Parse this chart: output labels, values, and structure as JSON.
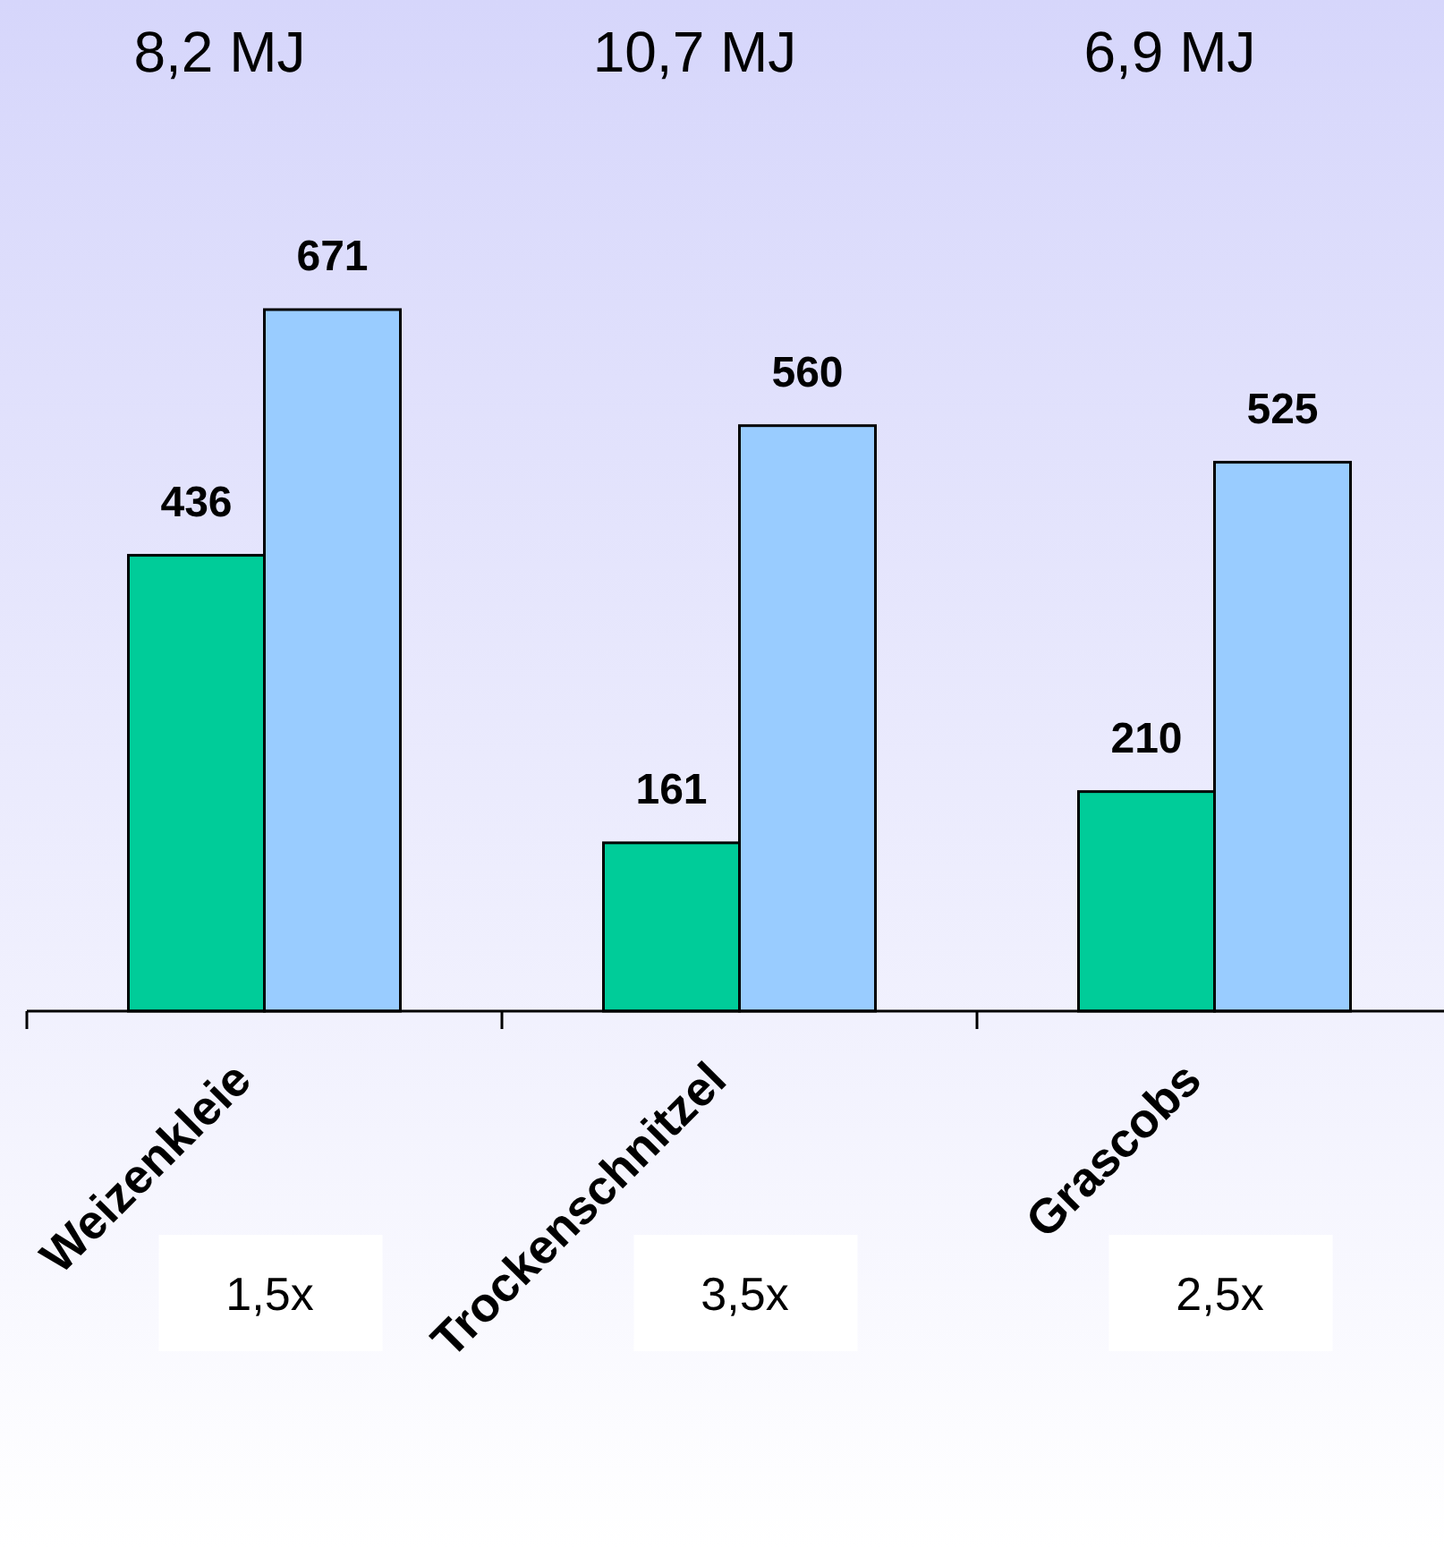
{
  "chart_data": {
    "type": "bar",
    "categories": [
      "Weizenkleie",
      "Trockenschnitzel",
      "Grascobs"
    ],
    "series": [
      {
        "color": "#00cc99",
        "values": [
          436,
          161,
          210
        ]
      },
      {
        "color": "#99ccff",
        "values": [
          671,
          560,
          525
        ]
      }
    ],
    "data_labels": true,
    "annotations": [
      "8,2 MJ",
      "10,7 MJ",
      "6,9 MJ",
      "1,5x",
      "3,5x",
      "2,5x"
    ]
  }
}
